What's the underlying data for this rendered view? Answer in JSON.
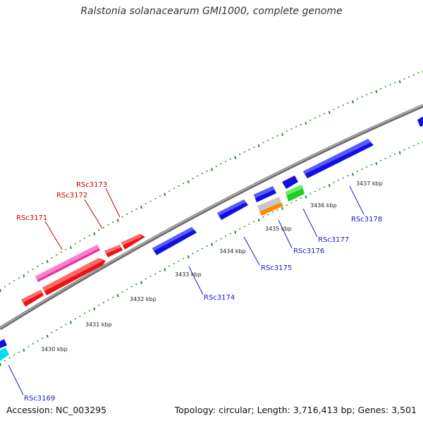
{
  "title": "Ralstonia solanacearum GMI1000, complete genome",
  "footer": {
    "accession": "Accession: NC_003295",
    "summary": "Topology: circular; Length: 3,716,413 bp; Genes: 3,501"
  },
  "scale_labels": [
    {
      "text": "3430 kbp"
    },
    {
      "text": "3431 kbp"
    },
    {
      "text": "3432 kbp"
    },
    {
      "text": "3433 kbp"
    },
    {
      "text": "3434 kbp"
    },
    {
      "text": "3435 kbp"
    },
    {
      "text": "3436 kbp"
    },
    {
      "text": "3437 kbp"
    }
  ],
  "gene_labels": [
    {
      "text": "RSc3169",
      "color": "#1a1acc"
    },
    {
      "text": "RSc3171",
      "color": "#cc0000"
    },
    {
      "text": "RSc3172",
      "color": "#cc0000"
    },
    {
      "text": "RSc3173",
      "color": "#cc0000"
    },
    {
      "text": "RSc3174",
      "color": "#1a1acc"
    },
    {
      "text": "RSc3175",
      "color": "#1a1acc"
    },
    {
      "text": "RSc3176",
      "color": "#1a1acc"
    },
    {
      "text": "RSc3177",
      "color": "#1a1acc"
    },
    {
      "text": "RSc3178",
      "color": "#1a1acc"
    }
  ],
  "colors": {
    "backbone": "#8a8a8a",
    "tick": "#2e8b2e",
    "blue_gene": "#1010e0",
    "red_gene": "#ee1111",
    "pink_gene": "#ee2fa0",
    "green_gene": "#22cc22",
    "orange_gene": "#ff8c00",
    "grey_gene": "#c8c8c8",
    "cyan_gene": "#00e0ee"
  }
}
